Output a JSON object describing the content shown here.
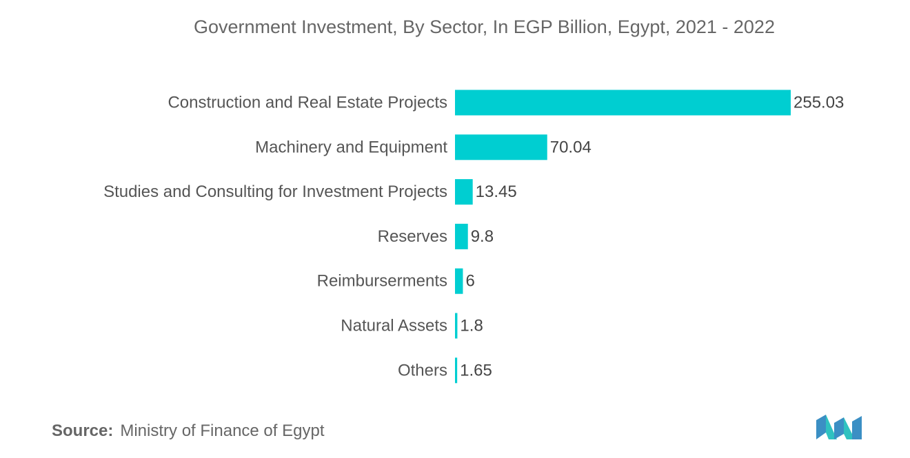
{
  "chart_data": {
    "type": "bar",
    "orientation": "horizontal",
    "title": "Government Investment, By Sector, In EGP Billion, Egypt, 2021 - 2022",
    "xlabel": "",
    "ylabel": "",
    "categories": [
      "Construction and Real Estate Projects",
      "Machinery and Equipment",
      "Studies and Consulting for Investment Projects",
      "Reserves",
      "Reimburserments",
      "Natural Assets",
      "Others"
    ],
    "values": [
      255.03,
      70.04,
      13.45,
      9.8,
      6,
      1.8,
      1.65
    ],
    "value_labels": [
      "255.03",
      "70.04",
      "13.45",
      "9.8",
      "6",
      "1.8",
      "1.65"
    ],
    "xlim": [
      0,
      255.03
    ],
    "grid": false,
    "legend": "none",
    "bar_color": "#00CED1"
  },
  "source": {
    "label": "Source:",
    "text": "Ministry of Finance of Egypt"
  },
  "brand": {
    "logo_icon": "mordor-intelligence-logo",
    "colors": [
      "#3B8FC4",
      "#2FC2C0"
    ]
  }
}
